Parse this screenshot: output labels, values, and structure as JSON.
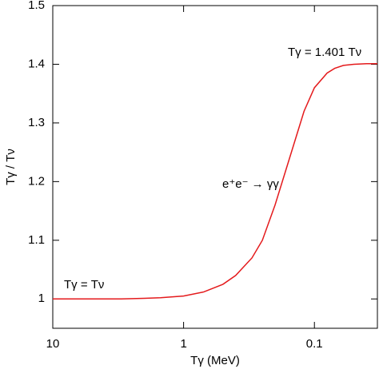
{
  "chart_data": {
    "type": "line",
    "xlabel": "Tγ (MeV)",
    "ylabel": "Tγ / Tν",
    "x": [
      10,
      5,
      3,
      2,
      1.5,
      1,
      0.7,
      0.5,
      0.4,
      0.3,
      0.25,
      0.2,
      0.15,
      0.12,
      0.1,
      0.08,
      0.07,
      0.06,
      0.05,
      0.04,
      0.033
    ],
    "series": [
      {
        "name": "Tγ / Tν",
        "color": "#e41a1c",
        "values": [
          1.0,
          1.0,
          1.0,
          1.001,
          1.002,
          1.005,
          1.012,
          1.025,
          1.04,
          1.07,
          1.1,
          1.16,
          1.25,
          1.32,
          1.36,
          1.385,
          1.393,
          1.398,
          1.4,
          1.401,
          1.401
        ]
      }
    ],
    "xlim": [
      10,
      0.033
    ],
    "xticks": [
      10,
      1,
      0.1
    ],
    "xscale": "log",
    "ylim": [
      0.95,
      1.5
    ],
    "yticks": [
      1,
      1.1,
      1.2,
      1.3,
      1.4,
      1.5
    ],
    "annotations": [
      "Tγ = Tν",
      "e⁺e⁻ → γγ",
      "Tγ = 1.401 Tν"
    ]
  }
}
